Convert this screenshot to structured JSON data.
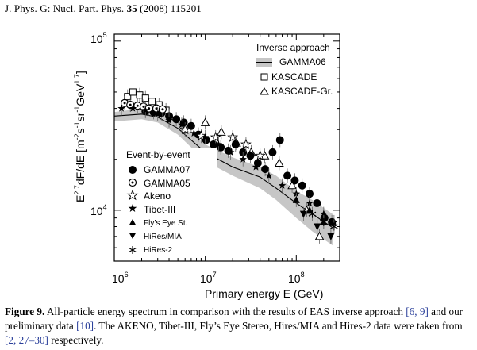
{
  "header": {
    "journal": "J. Phys. G: Nucl. Part. Phys.",
    "volume": "35",
    "year_page": "(2008) 115201"
  },
  "figure": {
    "ylabel": "E",
    "ylabel_sup": "2.7",
    "ylabel_rest": "dF/dE  [m",
    "ylabel_units": "-2",
    "ylabel_s": "s",
    "ylabel_s_exp": "-1",
    "ylabel_sr": "sr",
    "ylabel_sr_exp": "-1",
    "ylabel_gev": "GeV",
    "ylabel_gev_exp": "1.7",
    "ylabel_close": "]",
    "xlabel": "Primary energy E (GeV)",
    "x_ticks": [
      {
        "base": "10",
        "exp": "6"
      },
      {
        "base": "10",
        "exp": "7"
      },
      {
        "base": "10",
        "exp": "8"
      }
    ],
    "y_ticks": [
      {
        "base": "10",
        "exp": "5"
      },
      {
        "base": "10",
        "exp": "4"
      }
    ]
  },
  "legend_inverse": {
    "title": "Inverse approach",
    "items": [
      "GAMMA06",
      "KASCADE",
      "KASCADE-Gr."
    ]
  },
  "legend_event": {
    "title": "Event-by-event",
    "items": [
      "GAMMA07",
      "GAMMA05",
      "Akeno",
      "Tibet-III",
      "Fly’s Eye St.",
      "HiRes/MIA",
      "HiRes-2"
    ]
  },
  "chart_data": {
    "type": "scatter",
    "xscale": "log",
    "yscale": "log",
    "xlim": [
      1000000,
      300000000
    ],
    "ylim": [
      5000,
      110000
    ],
    "xlabel": "Primary energy E (GeV)",
    "ylabel": "E^2.7 dF/dE [m^-2 s^-1 sr^-1 GeV^1.7]",
    "series": [
      {
        "name": "GAMMA06",
        "kind": "band",
        "x": [
          1000000,
          2000000,
          3000000,
          5000000,
          7000000,
          10000000,
          20000000,
          40000000,
          60000000,
          100000000,
          150000000,
          250000000
        ],
        "low": [
          33500,
          34500,
          33000,
          28000,
          23500,
          19500,
          16000,
          13500,
          11500,
          9000,
          7500,
          6200
        ],
        "high": [
          38000,
          40000,
          38500,
          33000,
          28500,
          24500,
          20500,
          18000,
          16000,
          13000,
          11500,
          9500
        ]
      },
      {
        "name": "GAMMA06 line",
        "kind": "line",
        "x": [
          1000000,
          2000000,
          3000000,
          5000000,
          7000000,
          10000000,
          20000000,
          40000000,
          60000000,
          100000000,
          150000000,
          250000000
        ],
        "y": [
          36000,
          37000,
          35500,
          30500,
          26000,
          22000,
          18000,
          15700,
          13500,
          11000,
          9500,
          7900
        ]
      },
      {
        "name": "KASCADE",
        "marker": "square",
        "x": [
          1400000,
          1600000,
          1900000,
          2200000,
          2600000,
          3100000,
          3700000
        ],
        "y": [
          47000,
          50000,
          48000,
          46000,
          44000,
          42000,
          39000
        ]
      },
      {
        "name": "KASCADE-Gr.",
        "marker": "triangle-open",
        "x": [
          10000000,
          15000000,
          22000000,
          32000000,
          45000000,
          65000000,
          90000000,
          130000000,
          180000000
        ],
        "y": [
          33000,
          29000,
          25000,
          22000,
          21000,
          19000,
          14000,
          10000,
          7000
        ]
      },
      {
        "name": "GAMMA07",
        "marker": "circle-filled",
        "x": [
          2200000,
          2700000,
          3300000,
          4000000,
          4800000,
          5800000,
          7000000,
          8400000,
          10200000,
          12300000,
          14800000,
          17900000,
          21500000,
          26000000,
          31300000,
          37800000,
          45500000,
          54900000,
          66200000,
          79800000,
          96300000,
          116000000,
          140000000,
          169000000,
          204000000,
          246000000
        ],
        "y": [
          38500,
          38000,
          37500,
          36000,
          34500,
          33000,
          31500,
          28000,
          26000,
          24500,
          23500,
          22500,
          24500,
          22000,
          21000,
          19000,
          17500,
          22000,
          26000,
          16000,
          15000,
          14000,
          12500,
          11000,
          9000,
          8500
        ]
      },
      {
        "name": "GAMMA05",
        "marker": "circle-dotted",
        "x": [
          1300000,
          1500000,
          1800000,
          2100000,
          2400000,
          2900000,
          3400000
        ],
        "y": [
          43000,
          42000,
          41500,
          41000,
          40000,
          40000,
          39500
        ]
      },
      {
        "name": "Akeno",
        "marker": "star-open",
        "x": [
          6000000,
          9000000,
          13000000,
          20000000,
          28000000,
          40000000
        ],
        "y": [
          30000,
          27500,
          27000,
          27000,
          24500,
          21000
        ]
      },
      {
        "name": "Tibet-III",
        "marker": "star-filled",
        "x": [
          1200000,
          1600000,
          2200000,
          3000000,
          4000000,
          5500000,
          7500000,
          10000000,
          14000000,
          19000000,
          26000000,
          36000000,
          50000000,
          70000000,
          100000000,
          140000000,
          200000000,
          260000000
        ],
        "y": [
          40000,
          40000,
          39000,
          37000,
          34000,
          32000,
          28500,
          27000,
          24500,
          22000,
          20000,
          18000,
          16000,
          14000,
          12500,
          11000,
          9500,
          8500
        ]
      },
      {
        "name": "Fly’s Eye St.",
        "marker": "triangle-filled",
        "x": [
          100000000,
          140000000,
          200000000
        ],
        "y": [
          11500,
          10000,
          8500
        ]
      },
      {
        "name": "HiRes/MIA",
        "marker": "triangle-down-filled",
        "x": [
          120000000,
          170000000,
          240000000
        ],
        "y": [
          9500,
          8000,
          7000
        ]
      },
      {
        "name": "HiRes-2",
        "marker": "asterisk",
        "x": [
          150000000,
          200000000,
          260000000
        ],
        "y": [
          9500,
          8500,
          8000
        ]
      }
    ]
  },
  "caption": {
    "label": "Figure 9.",
    "text_1": " All-particle energy spectrum in comparison with the results of EAS inverse approach ",
    "ref_a": "[6, 9]",
    "text_2": " and our preliminary data ",
    "ref_b": "[10]",
    "text_3": ". The AKENO, Tibet-III, Fly’s Eye Stereo, Hires/MIA and Hires-2 data were taken from ",
    "ref_c": "[2, 27–30]",
    "text_4": " respectively."
  }
}
